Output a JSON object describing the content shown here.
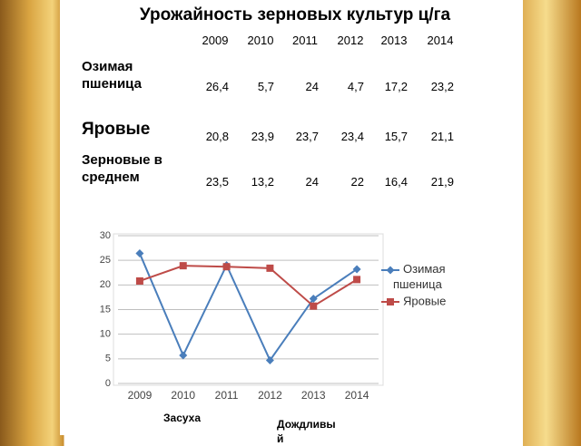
{
  "slide_title": "Урожайность зерновых культур ц/га",
  "table": {
    "header": [
      "2009",
      "2010",
      "2011",
      "2012",
      "2013",
      "2014"
    ],
    "rows": [
      {
        "label": "Озимая пшеница",
        "values": [
          "26,4",
          "5,7",
          "24",
          "4,7",
          "17,2",
          "23,2"
        ]
      },
      {
        "label": "Яровые",
        "values": [
          "20,8",
          "23,9",
          "23,7",
          "23,4",
          "15,7",
          "21,1"
        ]
      },
      {
        "label": "Зерновые в среднем",
        "values": [
          "23,5",
          "13,2",
          "24",
          "22",
          "16,4",
          "21,9"
        ]
      }
    ]
  },
  "chart_data": {
    "type": "line",
    "categories": [
      "2009",
      "2010",
      "2011",
      "2012",
      "2013",
      "2014"
    ],
    "series": [
      {
        "name": "Озимая пшеница",
        "color": "#4a7ebb",
        "marker": "diamond",
        "values": [
          26.4,
          5.7,
          24,
          4.7,
          17.2,
          23.2
        ]
      },
      {
        "name": "Яровые",
        "color": "#be4b48",
        "marker": "square",
        "values": [
          20.8,
          23.9,
          23.7,
          23.4,
          15.7,
          21.1
        ]
      }
    ],
    "ylim": [
      0,
      30
    ],
    "yticks": [
      0,
      5,
      10,
      15,
      20,
      25,
      30
    ],
    "grid": true,
    "legend": "right"
  },
  "annotations": [
    "Засуха",
    "Дождливый"
  ]
}
